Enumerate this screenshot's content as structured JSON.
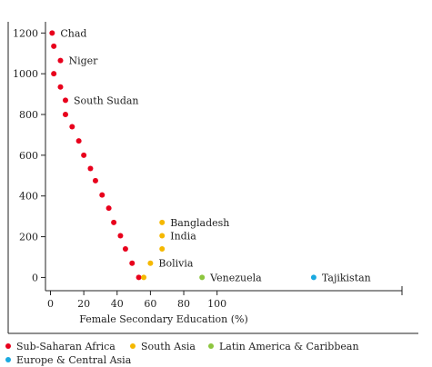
{
  "chart_data": {
    "type": "scatter",
    "title": "",
    "xlabel": "Female Secondary Education (%)",
    "ylabel": "",
    "xlim": [
      -3,
      211
    ],
    "ylim": [
      -65,
      1255
    ],
    "x_ticks": [
      0,
      20,
      40,
      60,
      80,
      100
    ],
    "y_ticks": [
      0,
      200,
      400,
      600,
      800,
      1000,
      1200
    ],
    "grid": false,
    "legend_position": "bottom",
    "series": [
      {
        "name": "Sub-Saharan Africa",
        "color": "#e8001c",
        "points": [
          {
            "x": 1,
            "y": 1200
          },
          {
            "x": 2,
            "y": 1135
          },
          {
            "x": 6,
            "y": 1065
          },
          {
            "x": 2,
            "y": 1000
          },
          {
            "x": 6,
            "y": 935
          },
          {
            "x": 9,
            "y": 870
          },
          {
            "x": 9,
            "y": 800
          },
          {
            "x": 13,
            "y": 740
          },
          {
            "x": 17,
            "y": 670
          },
          {
            "x": 20,
            "y": 600
          },
          {
            "x": 24,
            "y": 535
          },
          {
            "x": 27,
            "y": 475
          },
          {
            "x": 31,
            "y": 405
          },
          {
            "x": 35,
            "y": 340
          },
          {
            "x": 38,
            "y": 270
          },
          {
            "x": 42,
            "y": 205
          },
          {
            "x": 45,
            "y": 140
          },
          {
            "x": 49,
            "y": 70
          },
          {
            "x": 53,
            "y": 0
          }
        ]
      },
      {
        "name": "South Asia",
        "color": "#f5b800",
        "points": [
          {
            "x": 56,
            "y": 0
          },
          {
            "x": 60,
            "y": 70
          },
          {
            "x": 67,
            "y": 140
          },
          {
            "x": 67,
            "y": 205
          },
          {
            "x": 67,
            "y": 270
          }
        ]
      },
      {
        "name": "Latin America & Caribbean",
        "color": "#8dc63f",
        "points": [
          {
            "x": 91,
            "y": 0
          }
        ]
      },
      {
        "name": "Europe & Central Asia",
        "color": "#1aa9e0",
        "points": [
          {
            "x": 158,
            "y": 0
          }
        ]
      }
    ],
    "annotations": [
      {
        "text": "Chad",
        "x": 1,
        "y": 1200
      },
      {
        "text": "Niger",
        "x": 6,
        "y": 1065
      },
      {
        "text": "South Sudan",
        "x": 9,
        "y": 870
      },
      {
        "text": "Bangladesh",
        "x": 67,
        "y": 270
      },
      {
        "text": "India",
        "x": 67,
        "y": 205
      },
      {
        "text": "Bolivia",
        "x": 60,
        "y": 70
      },
      {
        "text": "Venezuela",
        "x": 91,
        "y": 0
      },
      {
        "text": "Tajikistan",
        "x": 158,
        "y": 0
      }
    ]
  }
}
